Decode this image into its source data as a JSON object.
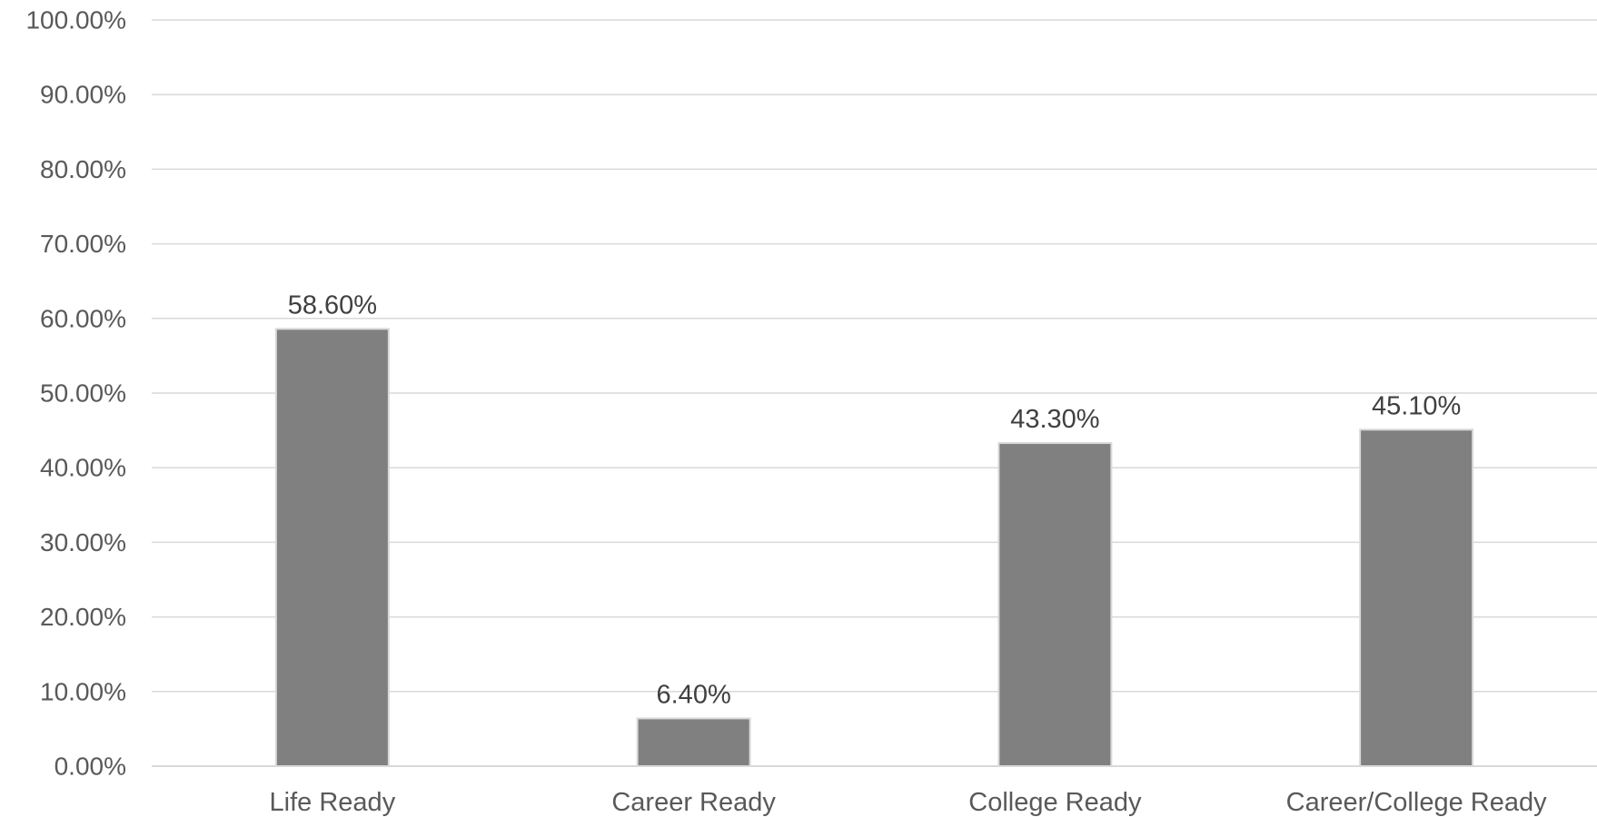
{
  "chart_data": {
    "type": "bar",
    "categories": [
      "Life Ready",
      "Career Ready",
      "College Ready",
      "Career/College Ready"
    ],
    "values": [
      58.6,
      6.4,
      43.3,
      45.1
    ],
    "data_labels": [
      "58.60%",
      "6.40%",
      "43.30%",
      "45.10%"
    ],
    "title": "",
    "xlabel": "",
    "ylabel": "",
    "ylim": [
      0,
      100
    ],
    "y_tick_labels": [
      "0.00%",
      "10.00%",
      "20.00%",
      "30.00%",
      "40.00%",
      "50.00%",
      "60.00%",
      "70.00%",
      "80.00%",
      "90.00%",
      "100.00%"
    ],
    "grid": true,
    "legend": "none",
    "colors": {
      "bar": "#808080",
      "bar_outline": "#d9d9d9",
      "grid": "#d9d9d9"
    }
  }
}
